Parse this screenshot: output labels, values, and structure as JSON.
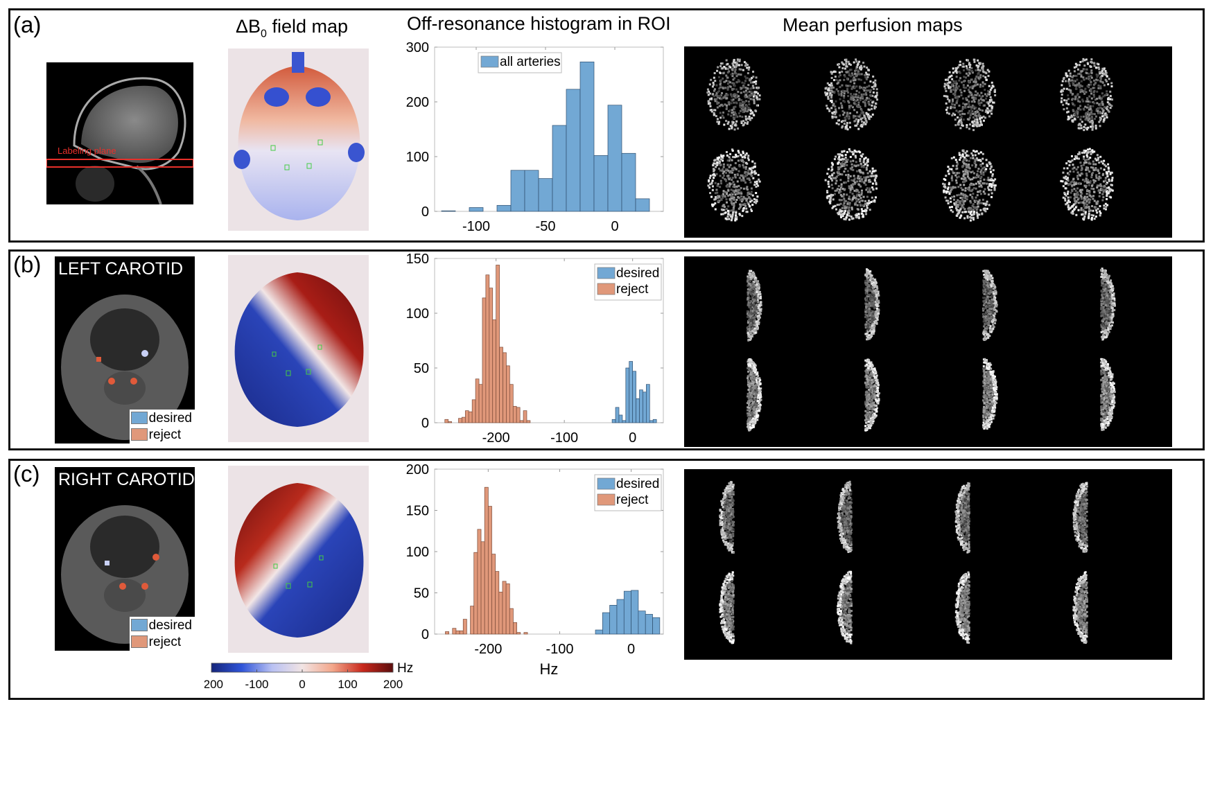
{
  "figure": {
    "column_titles": {
      "field_map": "ΔB",
      "field_map_sub": "0",
      "field_map_suffix": " field map",
      "histogram": "Off-resonance histogram in ROI",
      "perfusion": "Mean perfusion maps"
    },
    "panels": [
      {
        "id": "a",
        "label": "(a)",
        "image_caption": "Labeling plane"
      },
      {
        "id": "b",
        "label": "(b)",
        "image_caption": "LEFT CAROTID",
        "legend": [
          "desired",
          "reject"
        ]
      },
      {
        "id": "c",
        "label": "(c)",
        "image_caption": "RIGHT CAROTID",
        "legend": [
          "desired",
          "reject"
        ]
      }
    ],
    "colors": {
      "desired": "#72a8d4",
      "reject": "#e0987a",
      "bar_edge": "#2f4f6f",
      "reject_edge": "#7a4a38",
      "labeling_plane": "#e8302a",
      "panel_border": "#111111"
    },
    "colorbar": {
      "unit": "Hz",
      "ticks": [
        "-200",
        "-100",
        "0",
        "100",
        "200"
      ],
      "range": [
        -200,
        200
      ],
      "stops": [
        "#15257a",
        "#2f54d8",
        "#b9c1f3",
        "#f1e4e4",
        "#f3a78b",
        "#c8281c",
        "#5b0d0d"
      ]
    }
  },
  "chart_data": [
    {
      "type": "bar",
      "panel": "a",
      "title": "Off-resonance histogram in ROI",
      "xlabel": "",
      "ylabel": "",
      "xlim": [
        -130,
        35
      ],
      "ylim": [
        0,
        300
      ],
      "xticks": [
        -100,
        -50,
        0
      ],
      "yticks": [
        0,
        100,
        200,
        300
      ],
      "bin_width": 10,
      "legend_position": "top-left",
      "series": [
        {
          "name": "all arteries",
          "color_key": "desired",
          "bin_centers": [
            -120,
            -110,
            -100,
            -90,
            -80,
            -70,
            -60,
            -50,
            -40,
            -30,
            -20,
            -10,
            0,
            10,
            20,
            30
          ],
          "values": [
            1,
            0,
            7,
            0,
            11,
            75,
            75,
            60,
            157,
            223,
            273,
            102,
            194,
            106,
            23,
            0
          ]
        }
      ]
    },
    {
      "type": "bar",
      "panel": "b",
      "xlabel": "",
      "ylabel": "",
      "xlim": [
        -290,
        45
      ],
      "ylim": [
        0,
        150
      ],
      "xticks": [
        -200,
        -100,
        0
      ],
      "yticks": [
        0,
        50,
        100,
        150
      ],
      "bin_width": 5,
      "legend_position": "top-right",
      "series": [
        {
          "name": "desired",
          "color_key": "desired",
          "bin_centers": [
            -27.5,
            -22.5,
            -17.5,
            -12.5,
            -7.5,
            -2.5,
            2.5,
            7.5,
            12.5,
            17.5,
            22.5,
            27.5,
            32.5
          ],
          "values": [
            3,
            14,
            7,
            2,
            50,
            56,
            47,
            22,
            30,
            28,
            35,
            2,
            3
          ]
        },
        {
          "name": "reject",
          "color_key": "reject",
          "bin_centers": [
            -272.5,
            -267.5,
            -262.5,
            -257.5,
            -252.5,
            -247.5,
            -242.5,
            -237.5,
            -232.5,
            -227.5,
            -222.5,
            -217.5,
            -212.5,
            -207.5,
            -202.5,
            -197.5,
            -192.5,
            -187.5,
            -182.5,
            -177.5,
            -172.5,
            -167.5,
            -162.5,
            -157.5,
            -152.5,
            -147.5
          ],
          "values": [
            3,
            1,
            0,
            0,
            4,
            5,
            11,
            10,
            21,
            40,
            35,
            114,
            135,
            123,
            94,
            144,
            69,
            64,
            52,
            35,
            15,
            14,
            2,
            11,
            2,
            0
          ]
        }
      ]
    },
    {
      "type": "bar",
      "panel": "c",
      "xlabel": "Hz",
      "ylabel": "",
      "xlim": [
        -275,
        45
      ],
      "ylim": [
        0,
        200
      ],
      "xticks": [
        -200,
        -100,
        0
      ],
      "yticks": [
        0,
        50,
        100,
        150,
        200
      ],
      "legend_position": "top-right",
      "series": [
        {
          "name": "desired",
          "color_key": "desired",
          "bin_width": 10,
          "bin_centers": [
            -45,
            -35,
            -25,
            -15,
            -5,
            5,
            15,
            25,
            35
          ],
          "values": [
            5,
            26,
            35,
            42,
            52,
            53,
            28,
            24,
            20
          ]
        },
        {
          "name": "reject",
          "color_key": "reject",
          "bin_width": 5,
          "bin_centers": [
            -257.5,
            -252.5,
            -247.5,
            -242.5,
            -237.5,
            -232.5,
            -227.5,
            -222.5,
            -217.5,
            -212.5,
            -207.5,
            -202.5,
            -197.5,
            -192.5,
            -187.5,
            -182.5,
            -177.5,
            -172.5,
            -167.5,
            -162.5,
            -157.5,
            -152.5,
            -147.5
          ],
          "values": [
            3,
            0,
            7,
            4,
            4,
            18,
            0,
            34,
            99,
            127,
            112,
            178,
            155,
            97,
            76,
            51,
            64,
            61,
            31,
            14,
            2,
            0,
            2
          ]
        }
      ]
    }
  ]
}
